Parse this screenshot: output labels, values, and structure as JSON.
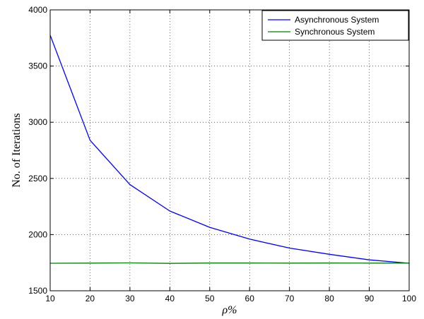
{
  "chart_data": {
    "type": "line",
    "title": "",
    "xlabel": "ρ%",
    "ylabel": "No. of Iterations",
    "xlim": [
      10,
      100
    ],
    "ylim": [
      1500,
      4000
    ],
    "xticks": [
      10,
      20,
      30,
      40,
      50,
      60,
      70,
      80,
      90,
      100
    ],
    "yticks": [
      1500,
      2000,
      2500,
      3000,
      3500,
      4000
    ],
    "grid": true,
    "grid_style": "dotted",
    "legend_position": "top-right",
    "x": [
      10,
      20,
      30,
      40,
      50,
      60,
      70,
      80,
      90,
      100
    ],
    "series": [
      {
        "name": "Asynchronous System",
        "color": "#0000ff",
        "values": [
          3775,
          2840,
          2445,
          2210,
          2065,
          1960,
          1880,
          1825,
          1775,
          1745
        ]
      },
      {
        "name": "Synchronous System",
        "color": "#008000",
        "values": [
          1745,
          1746,
          1748,
          1744,
          1747,
          1747,
          1746,
          1747,
          1746,
          1746
        ]
      }
    ]
  }
}
